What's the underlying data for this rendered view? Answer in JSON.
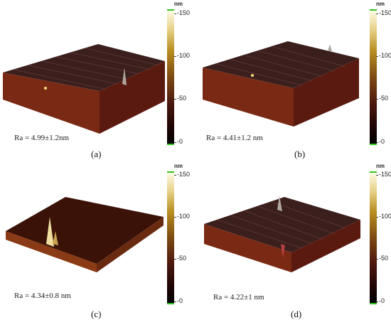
{
  "panels": [
    {
      "label": "(a)",
      "ra": "Ra = 4.99±1.2nm"
    },
    {
      "label": "(b)",
      "ra": "Ra = 4.41±1.2 nm"
    },
    {
      "label": "(c)",
      "ra": "Ra = 4.34±0.8 nm"
    },
    {
      "label": "(d)",
      "ra": "Ra = 4.22±1 nm"
    }
  ],
  "colorbar": {
    "unit": "nm",
    "ticks": [
      "-150",
      "-100",
      "-50",
      "-0"
    ],
    "gradient_colors": [
      "#fdfbe6",
      "#e7d289",
      "#b98e22",
      "#7e4a12",
      "#4a170e",
      "#220605",
      "#000000"
    ],
    "cap_color": "#33c41f"
  }
}
